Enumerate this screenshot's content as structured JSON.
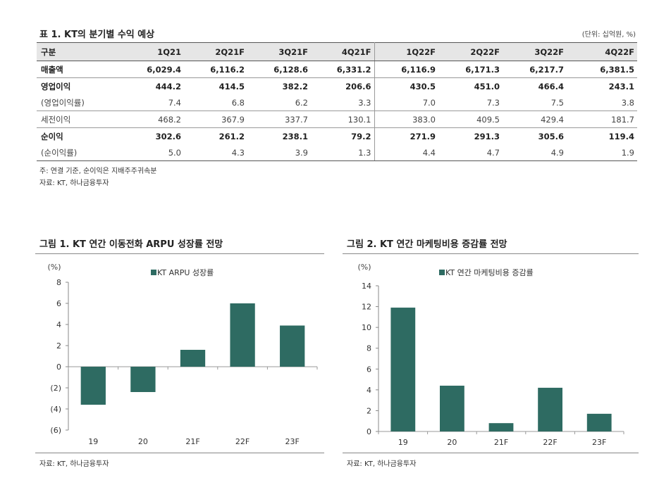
{
  "table": {
    "title": "표 1. KT의 분기별 수익 예상",
    "unit": "(단위: 십억원, %)",
    "headers": [
      "구분",
      "1Q21",
      "2Q21F",
      "3Q21F",
      "4Q21F",
      "1Q22F",
      "2Q22F",
      "3Q22F",
      "4Q22F"
    ],
    "rows": [
      {
        "label": "매출액",
        "values": [
          "6,029.4",
          "6,116.2",
          "6,128.6",
          "6,331.2",
          "6,116.9",
          "6,171.3",
          "6,217.7",
          "6,381.5"
        ]
      },
      {
        "label": "영업이익",
        "values": [
          "444.2",
          "414.5",
          "382.2",
          "206.6",
          "430.5",
          "451.0",
          "466.4",
          "243.1"
        ]
      },
      {
        "label": "(영업이익률)",
        "values": [
          "7.4",
          "6.8",
          "6.2",
          "3.3",
          "7.0",
          "7.3",
          "7.5",
          "3.8"
        ]
      },
      {
        "label": "세전이익",
        "values": [
          "468.2",
          "367.9",
          "337.7",
          "130.1",
          "383.0",
          "409.5",
          "429.4",
          "181.7"
        ]
      },
      {
        "label": "순이익",
        "values": [
          "302.6",
          "261.2",
          "238.1",
          "79.2",
          "271.9",
          "291.3",
          "305.6",
          "119.4"
        ]
      },
      {
        "label": "(순이익률)",
        "values": [
          "5.0",
          "4.3",
          "3.9",
          "1.3",
          "4.4",
          "4.7",
          "4.9",
          "1.9"
        ]
      }
    ],
    "note": "주: 연결 기준, 순이익은 지배주주귀속분",
    "source": "자료: KT, 하나금융투자"
  },
  "chart_data": [
    {
      "type": "bar",
      "title": "그림 1. KT 연간 이동전화 ARPU 성장률 전망",
      "ylabel": "(%)",
      "legend": "KT ARPU 성장률",
      "legend_position": "top-center",
      "categories": [
        "19",
        "20",
        "21F",
        "22F",
        "23F"
      ],
      "values": [
        -3.6,
        -2.4,
        1.6,
        6.0,
        3.9
      ],
      "ylim": [
        -6,
        8
      ],
      "yticks": [
        8,
        6,
        4,
        2,
        0,
        -2,
        -4,
        -6
      ],
      "ytick_labels": [
        "8",
        "6",
        "4",
        "2",
        "0",
        "(2)",
        "(4)",
        "(6)"
      ],
      "color": "#2e6b62",
      "source": "자료: KT, 하나금융투자"
    },
    {
      "type": "bar",
      "title": "그림 2. KT 연간 마케팅비용 증감률 전망",
      "ylabel": "(%)",
      "legend": "KT 연간 마케팅비용 증감률",
      "legend_position": "top-center",
      "categories": [
        "19",
        "20",
        "21F",
        "22F",
        "23F"
      ],
      "values": [
        11.9,
        4.4,
        0.8,
        4.2,
        1.7
      ],
      "ylim": [
        0,
        14
      ],
      "yticks": [
        14,
        12,
        10,
        8,
        6,
        4,
        2,
        0
      ],
      "ytick_labels": [
        "14",
        "12",
        "10",
        "8",
        "6",
        "4",
        "2",
        "0"
      ],
      "color": "#2e6b62",
      "source": "자료: KT, 하나금융투자"
    }
  ]
}
